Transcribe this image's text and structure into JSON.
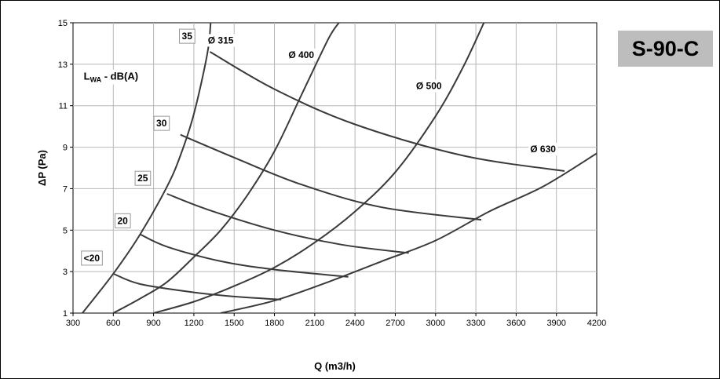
{
  "chart_data": {
    "type": "line",
    "title": "",
    "xlabel": "Q (m3/h)",
    "ylabel": "ΔP (Pa)",
    "xlim": [
      300,
      4200
    ],
    "ylim": [
      1,
      15
    ],
    "x_ticks": [
      300,
      600,
      900,
      1200,
      1500,
      1800,
      2100,
      2400,
      2700,
      3000,
      3300,
      3600,
      3900,
      4200
    ],
    "y_ticks": [
      1,
      3,
      5,
      7,
      9,
      11,
      13,
      15
    ],
    "grid": true,
    "legend": "none",
    "series": [
      {
        "name": "Ø 315",
        "x": [
          370,
          600,
          800,
          1000,
          1100,
          1200,
          1300,
          1325
        ],
        "y": [
          1.0,
          2.9,
          4.8,
          7.1,
          8.6,
          10.6,
          13.5,
          15.0
        ]
      },
      {
        "name": "Ø 400",
        "x": [
          600,
          800,
          1000,
          1200,
          1400,
          1600,
          1800,
          2000,
          2200,
          2280
        ],
        "y": [
          1.0,
          1.7,
          2.5,
          3.7,
          5.0,
          6.7,
          8.8,
          11.5,
          14.2,
          15.0
        ]
      },
      {
        "name": "Ø 500",
        "x": [
          900,
          1200,
          1500,
          1800,
          2100,
          2400,
          2700,
          3000,
          3200,
          3360
        ],
        "y": [
          1.0,
          1.55,
          2.3,
          3.2,
          4.4,
          5.9,
          7.8,
          10.5,
          12.8,
          15.0
        ]
      },
      {
        "name": "Ø 630",
        "x": [
          1400,
          1800,
          2200,
          2600,
          3000,
          3400,
          3800,
          4200
        ],
        "y": [
          1.0,
          1.6,
          2.5,
          3.5,
          4.5,
          5.9,
          7.1,
          8.7
        ]
      }
    ],
    "noise_series": [
      {
        "name": "<20",
        "x": [
          600,
          800,
          1200,
          1500,
          1850
        ],
        "y": [
          2.9,
          2.4,
          2.0,
          1.8,
          1.65
        ]
      },
      {
        "name": "20",
        "x": [
          800,
          1000,
          1400,
          1800,
          2350
        ],
        "y": [
          4.8,
          4.2,
          3.5,
          3.1,
          2.75
        ]
      },
      {
        "name": "25",
        "x": [
          1000,
          1300,
          1800,
          2300,
          2800
        ],
        "y": [
          6.75,
          6.0,
          5.0,
          4.3,
          3.9
        ]
      },
      {
        "name": "30",
        "x": [
          1100,
          1500,
          2000,
          2600,
          3340
        ],
        "y": [
          9.6,
          8.5,
          7.2,
          6.1,
          5.5
        ]
      },
      {
        "name": "35",
        "x": [
          1320,
          1800,
          2400,
          3200,
          3960
        ],
        "y": [
          13.6,
          11.8,
          10.1,
          8.6,
          7.85
        ]
      }
    ],
    "curve_labels": [
      {
        "text": "Ø 315",
        "x": 1400,
        "y": 14.0
      },
      {
        "text": "Ø 400",
        "x": 2000,
        "y": 13.3
      },
      {
        "text": "Ø 500",
        "x": 2950,
        "y": 11.8
      },
      {
        "text": "Ø 630",
        "x": 3800,
        "y": 8.75
      }
    ],
    "noise_labels": [
      {
        "text": "<20",
        "x": 380,
        "y": 3.5
      },
      {
        "text": "20",
        "x": 630,
        "y": 5.3
      },
      {
        "text": "25",
        "x": 780,
        "y": 7.35
      },
      {
        "text": "30",
        "x": 920,
        "y": 10.0
      },
      {
        "text": "35",
        "x": 1110,
        "y": 14.2
      }
    ],
    "lwa_label": {
      "main": "L",
      "sub": "WA",
      "rest": " - dB(A)"
    }
  },
  "model": "S-90-C",
  "colors": {
    "curve": "#3a3a3a",
    "grid": "#b8b8b8",
    "badge": "#bdbdbd"
  }
}
